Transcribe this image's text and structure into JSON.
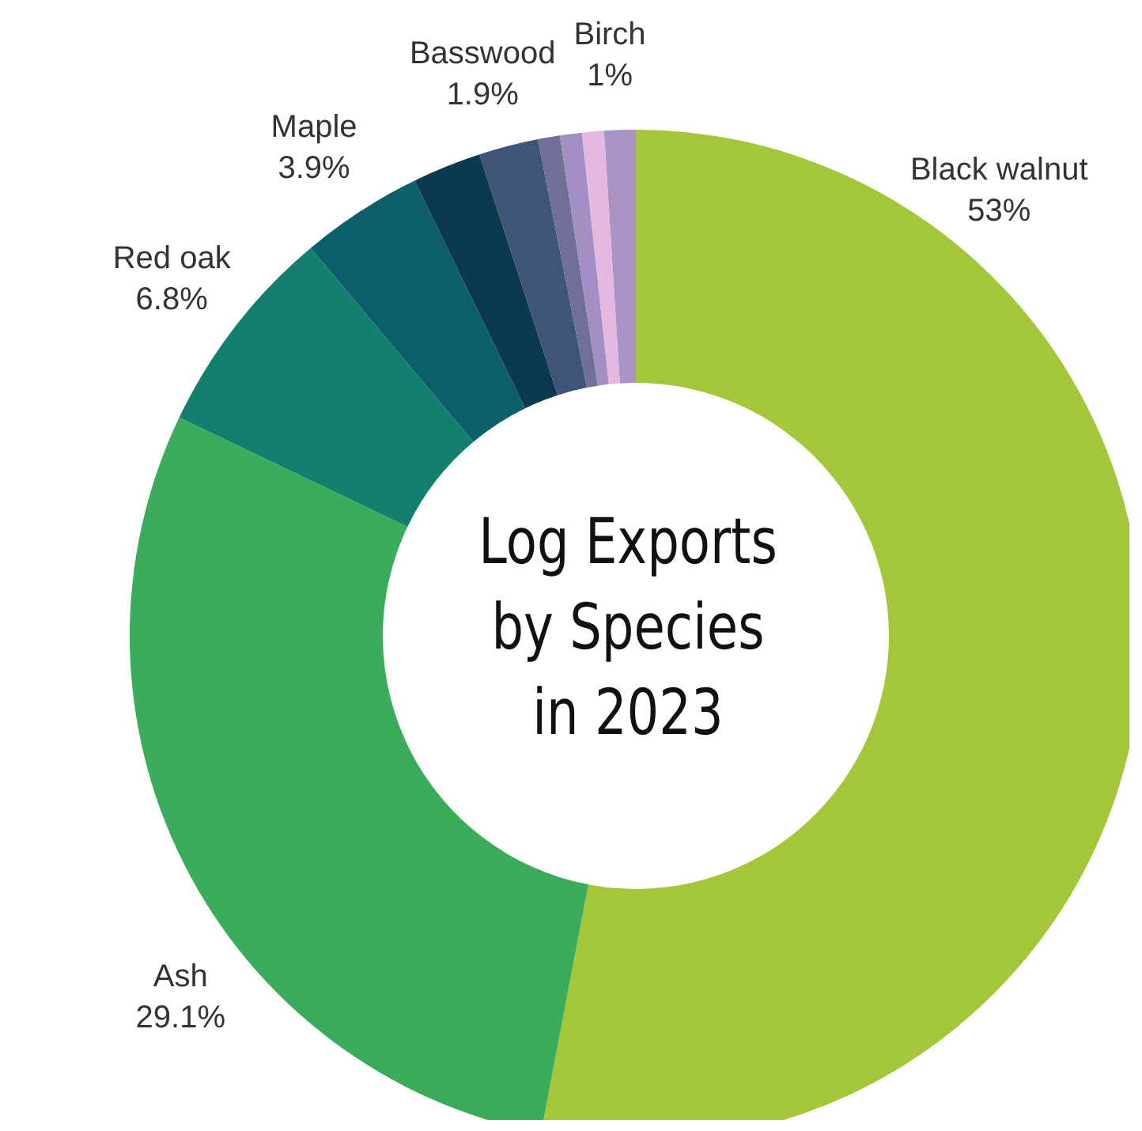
{
  "chart_data": {
    "type": "donut",
    "title": "Log Exports by Species in 2023",
    "categories": [
      "Black walnut",
      "Ash",
      "Red oak",
      "Maple",
      null,
      "Basswood",
      null,
      null,
      null,
      "Birch"
    ],
    "values": [
      53,
      29.1,
      6.8,
      3.9,
      2.2,
      1.9,
      0.7,
      0.7,
      0.7,
      1
    ],
    "value_labels": [
      "53%",
      "29.1%",
      "6.8%",
      "3.9%",
      null,
      "1.9%",
      null,
      null,
      null,
      "1%"
    ],
    "colors": [
      "#a4c639",
      "#3aac5a",
      "#13806f",
      "#0d5e6b",
      "#0b3a4f",
      "#3e5577",
      "#6f6f9a",
      "#a48fc4",
      "#e4b8e0",
      "#a893c4"
    ],
    "legend": false
  }
}
